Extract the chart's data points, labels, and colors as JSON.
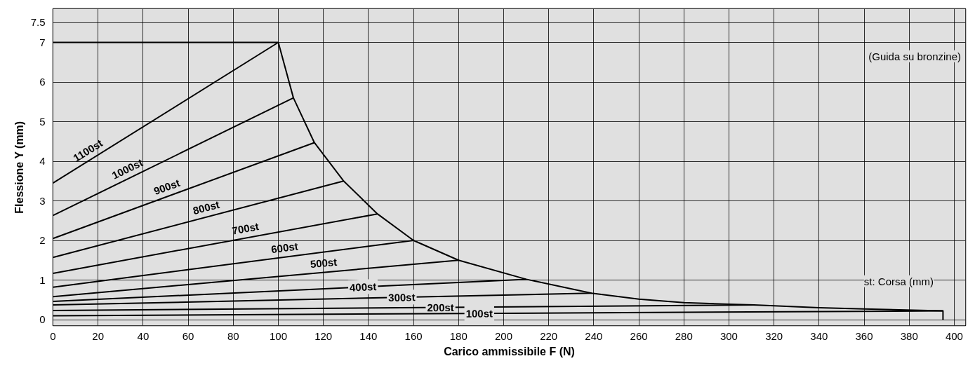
{
  "chart_data": {
    "type": "line",
    "xlabel": "Carico ammissibile F (N)",
    "ylabel": "Flessione Y (mm)",
    "annotations": [
      "(Guida su bronzine)",
      "st: Corsa (mm)"
    ],
    "xlim": [
      0,
      405
    ],
    "ylim": [
      -0.15,
      7.85
    ],
    "xticks": [
      0,
      20,
      40,
      60,
      80,
      100,
      120,
      140,
      160,
      180,
      200,
      220,
      240,
      260,
      280,
      300,
      320,
      340,
      360,
      380,
      400
    ],
    "yticks": [
      0,
      1,
      2,
      3,
      4,
      5,
      6,
      7,
      7.5
    ],
    "grid": true,
    "marker": "none",
    "line_style": "solid",
    "series": [
      {
        "name": "1100st",
        "color": "#000000",
        "x": [
          0,
          100
        ],
        "values": [
          3.45,
          7
        ]
      },
      {
        "name": "1000st",
        "color": "#000000",
        "x": [
          0,
          106.7
        ],
        "values": [
          2.63,
          5.6
        ]
      },
      {
        "name": "900st",
        "color": "#000000",
        "x": [
          0,
          116
        ],
        "values": [
          2.05,
          4.47
        ]
      },
      {
        "name": "800st",
        "color": "#000000",
        "x": [
          0,
          129
        ],
        "values": [
          1.57,
          3.5
        ]
      },
      {
        "name": "700st",
        "color": "#000000",
        "x": [
          0,
          144
        ],
        "values": [
          1.17,
          2.67
        ]
      },
      {
        "name": "600st",
        "color": "#000000",
        "x": [
          0,
          160
        ],
        "values": [
          0.82,
          2.0
        ]
      },
      {
        "name": "500st",
        "color": "#000000",
        "x": [
          0,
          180
        ],
        "values": [
          0.58,
          1.5
        ]
      },
      {
        "name": "400st",
        "color": "#000000",
        "x": [
          0,
          210
        ],
        "values": [
          0.46,
          1.02
        ]
      },
      {
        "name": "300st",
        "color": "#000000",
        "x": [
          0,
          239
        ],
        "values": [
          0.37,
          0.67
        ]
      },
      {
        "name": "200st",
        "color": "#000000",
        "x": [
          0,
          311
        ],
        "values": [
          0.23,
          0.37
        ]
      },
      {
        "name": "100st",
        "color": "#000000",
        "x": [
          0,
          395
        ],
        "values": [
          0.1,
          0.22
        ]
      },
      {
        "color": "#000000",
        "x": [
          0,
          100,
          106.7,
          116,
          129,
          144,
          160,
          180,
          210,
          239,
          260,
          280,
          300,
          311,
          340,
          360,
          395,
          395
        ],
        "values": [
          7,
          7,
          5.6,
          4.47,
          3.5,
          2.67,
          2.0,
          1.5,
          1.02,
          0.67,
          0.52,
          0.43,
          0.39,
          0.37,
          0.3,
          0.27,
          0.22,
          0
        ]
      }
    ]
  }
}
